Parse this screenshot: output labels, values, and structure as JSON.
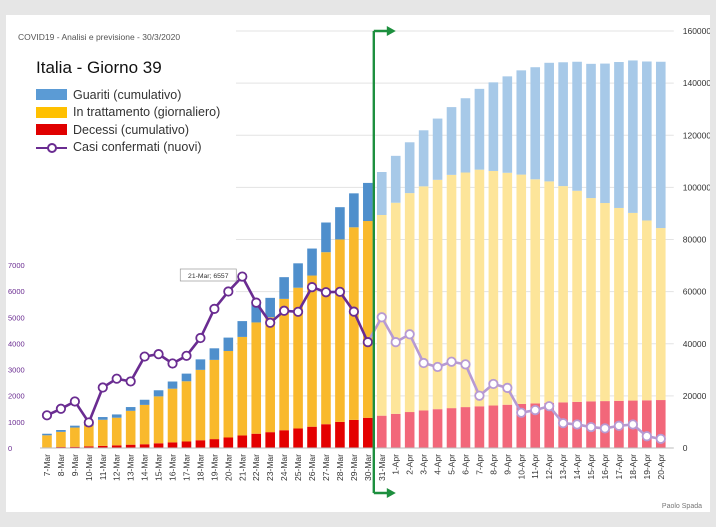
{
  "header": {
    "subtitle": "COVID19 - Analisi e previsione - 30/3/2020",
    "title": "Italia - Giorno 39",
    "credit": "Paolo Spada"
  },
  "legend": [
    {
      "label": "Guariti (cumulativo)",
      "color": "#5b9bd5"
    },
    {
      "label": "In trattamento (giornaliero)",
      "color": "#ffc000"
    },
    {
      "label": "Decessi (cumulativo)",
      "color": "#e00000"
    },
    {
      "label": "Casi confermati (nuovi)",
      "color": "#6a2c91"
    }
  ],
  "colors": {
    "recovered": "#4f8fcc",
    "recovered_forecast": "#a7c9e8",
    "treatment": "#f9b92c",
    "treatment_forecast": "#fde59a",
    "deaths": "#e40000",
    "deaths_forecast": "#f2677a",
    "cases": "#6a2c91",
    "cases_forecast": "#b79ad3",
    "divider": "#1d8f3e"
  },
  "chart_data": {
    "type": "bar",
    "title": "Italia - Giorno 39",
    "stacked": true,
    "categories": [
      "7-Mar",
      "8-Mar",
      "9-Mar",
      "10-Mar",
      "11-Mar",
      "12-Mar",
      "13-Mar",
      "14-Mar",
      "15-Mar",
      "16-Mar",
      "17-Mar",
      "18-Mar",
      "19-Mar",
      "20-Mar",
      "21-Mar",
      "22-Mar",
      "23-Mar",
      "24-Mar",
      "25-Mar",
      "26-Mar",
      "27-Mar",
      "28-Mar",
      "29-Mar",
      "30-Mar",
      "31-Mar",
      "1-Apr",
      "2-Apr",
      "3-Apr",
      "4-Apr",
      "5-Apr",
      "6-Apr",
      "7-Apr",
      "8-Apr",
      "9-Apr",
      "10-Apr",
      "11-Apr",
      "12-Apr",
      "13-Apr",
      "14-Apr",
      "15-Apr",
      "16-Apr",
      "17-Apr",
      "18-Apr",
      "19-Apr",
      "20-Apr"
    ],
    "forecast_start_index": 24,
    "divider_after": "30-Mar",
    "right_axis": {
      "ylim": [
        0,
        160000
      ],
      "ticks": [
        0,
        20000,
        40000,
        60000,
        80000,
        100000,
        120000,
        140000,
        160000
      ]
    },
    "left_axis": {
      "ylim": [
        0,
        7000
      ],
      "ticks": [
        0,
        1000,
        2000,
        3000,
        4000,
        5000,
        6000,
        7000
      ]
    },
    "series": [
      {
        "name": "Decessi (cumulativo)",
        "axis": "right",
        "values": [
          230,
          370,
          460,
          630,
          830,
          1020,
          1270,
          1440,
          1810,
          2160,
          2500,
          2980,
          3410,
          4030,
          4820,
          5480,
          6080,
          6820,
          7500,
          8170,
          9130,
          10020,
          10780,
          11590,
          12400,
          13100,
          13800,
          14400,
          14900,
          15300,
          15700,
          16000,
          16300,
          16600,
          16900,
          17100,
          17300,
          17500,
          17700,
          17900,
          18000,
          18100,
          18200,
          18300,
          18400
        ]
      },
      {
        "name": "In trattamento (giornaliero)",
        "axis": "right",
        "values": [
          4640,
          5830,
          7380,
          7980,
          10000,
          10600,
          13000,
          15100,
          18000,
          20600,
          23100,
          27000,
          30400,
          33200,
          37800,
          42700,
          44100,
          50400,
          54000,
          58000,
          66000,
          70000,
          73900,
          75500,
          77000,
          81000,
          84000,
          86000,
          88000,
          89500,
          90000,
          90800,
          90000,
          89000,
          88000,
          86000,
          85000,
          83000,
          81000,
          78000,
          76000,
          74000,
          72000,
          69000,
          66000
        ]
      },
      {
        "name": "Guariti (cumulativo)",
        "axis": "right",
        "values": [
          600,
          700,
          730,
          1000,
          1050,
          1260,
          1440,
          1970,
          2340,
          2750,
          2940,
          4030,
          4440,
          5130,
          6070,
          7020,
          7430,
          8330,
          9360,
          10360,
          11390,
          12380,
          13030,
          14620,
          16500,
          18000,
          19500,
          21500,
          23500,
          26000,
          28500,
          31000,
          34000,
          37000,
          40000,
          43000,
          45500,
          47500,
          49500,
          51500,
          53500,
          56000,
          58500,
          61000,
          63800
        ]
      },
      {
        "name": "Casi confermati (nuovi)",
        "axis": "left",
        "type": "line",
        "values": [
          1250,
          1500,
          1780,
          977,
          2313,
          2651,
          2547,
          3497,
          3590,
          3233,
          3526,
          4207,
          5322,
          5986,
          6557,
          5560,
          4789,
          5249,
          5210,
          6153,
          5959,
          5974,
          5217,
          4050,
          5000,
          4050,
          4350,
          3250,
          3100,
          3300,
          3200,
          2000,
          2450,
          2300,
          1350,
          1450,
          1600,
          950,
          900,
          800,
          750,
          850,
          900,
          450,
          350
        ]
      }
    ],
    "annotations": [
      {
        "x": "21-Mar",
        "text": "21-Mar; 6557"
      }
    ]
  }
}
